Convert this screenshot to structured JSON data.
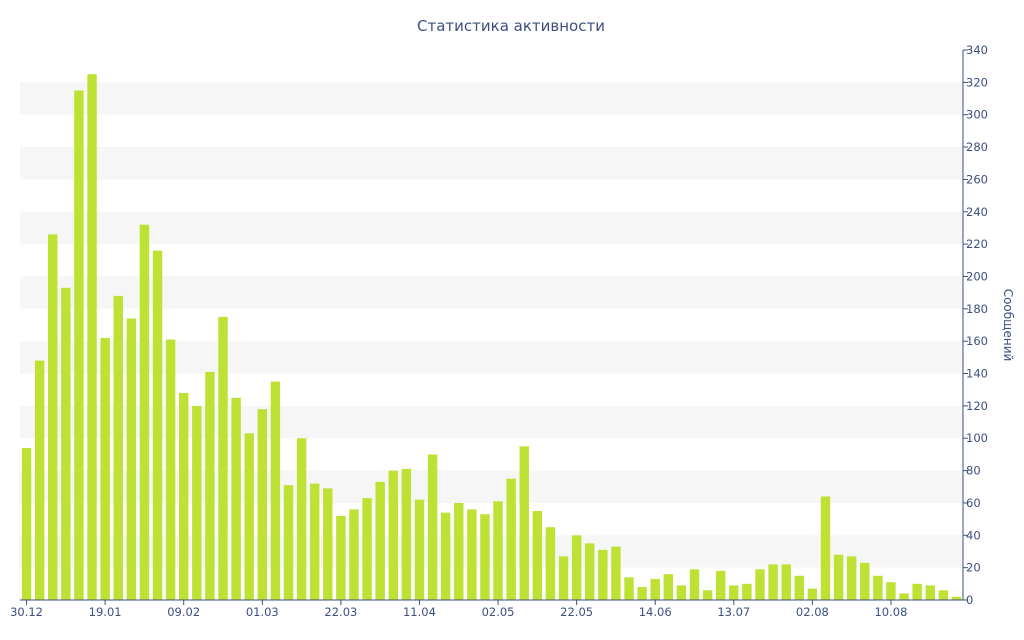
{
  "chart_data": {
    "type": "bar",
    "title": "Статистика активности",
    "ylabel": "Сообщений",
    "ylim": [
      0,
      340
    ],
    "yticks": [
      0,
      20,
      40,
      60,
      80,
      100,
      120,
      140,
      160,
      180,
      200,
      220,
      240,
      260,
      280,
      300,
      320,
      340
    ],
    "y_axis_position": "right",
    "grid": "alternating-bands",
    "bar_color": "#bde233",
    "band_color": "#f6f6f6",
    "text_color": "#3e4f80",
    "x_tick_labels": [
      {
        "index": 0,
        "label": "30.12"
      },
      {
        "index": 6,
        "label": "19.01"
      },
      {
        "index": 12,
        "label": "09.02"
      },
      {
        "index": 18,
        "label": "01.03"
      },
      {
        "index": 24,
        "label": "22.03"
      },
      {
        "index": 30,
        "label": "11.04"
      },
      {
        "index": 36,
        "label": "02.05"
      },
      {
        "index": 42,
        "label": "22.05"
      },
      {
        "index": 48,
        "label": "14.06"
      },
      {
        "index": 54,
        "label": "13.07"
      },
      {
        "index": 60,
        "label": "02.08"
      },
      {
        "index": 66,
        "label": "10.08"
      }
    ],
    "values": [
      94,
      148,
      226,
      193,
      315,
      325,
      162,
      188,
      174,
      232,
      216,
      161,
      128,
      120,
      141,
      175,
      125,
      103,
      118,
      135,
      71,
      100,
      72,
      69,
      52,
      56,
      63,
      73,
      80,
      81,
      62,
      90,
      54,
      60,
      56,
      53,
      61,
      75,
      95,
      55,
      45,
      27,
      40,
      35,
      31,
      33,
      14,
      8,
      13,
      16,
      9,
      19,
      6,
      18,
      9,
      10,
      19,
      22,
      22,
      15,
      7,
      64,
      28,
      27,
      23,
      15,
      11,
      4,
      10,
      9,
      6,
      2
    ]
  }
}
